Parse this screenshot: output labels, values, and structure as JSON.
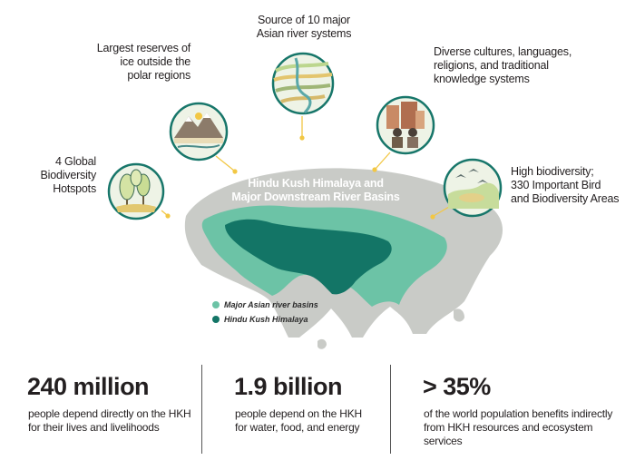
{
  "callouts": {
    "hotspots": [
      "4 Global",
      "Biodiversity",
      "Hotspots"
    ],
    "ice": [
      "Largest reserves of",
      "ice outside the",
      "polar regions"
    ],
    "rivers": [
      "Source of 10 major",
      "Asian river systems"
    ],
    "cultures": [
      "Diverse cultures, languages,",
      "religions, and traditional",
      "knowledge systems"
    ],
    "biodiversity": [
      "High biodiversity;",
      "330 Important Bird",
      "and Biodiversity Areas"
    ]
  },
  "map": {
    "title": [
      "Hindu Kush Himalaya and",
      "Major Downstream River Basins"
    ],
    "legend": [
      {
        "label": "Major Asian river basins",
        "color": "#6cc3a6"
      },
      {
        "label": "Hindu Kush Himalaya",
        "color": "#137566"
      }
    ]
  },
  "stats": [
    {
      "value": "240 million",
      "lines": [
        "people depend directly on the HKH",
        "for their lives and livelihoods"
      ]
    },
    {
      "value": "1.9 billion",
      "lines": [
        "people depend on the HKH",
        "for water, food, and energy"
      ]
    },
    {
      "value": "> 35%",
      "lines": [
        "of the world population benefits indirectly",
        "from HKH resources and ecosystem services"
      ]
    }
  ],
  "colors": {
    "map_base": "#c9cbc7",
    "river_basins": "#6cc3a6",
    "hkh": "#137566",
    "connector": "#f2c744",
    "icon_ring": "#17766a",
    "icon_bg": "#eef3e6"
  },
  "icons": [
    "trees-icon",
    "mountain-ice-icon",
    "river-icon",
    "people-culture-icon",
    "birds-icon"
  ]
}
